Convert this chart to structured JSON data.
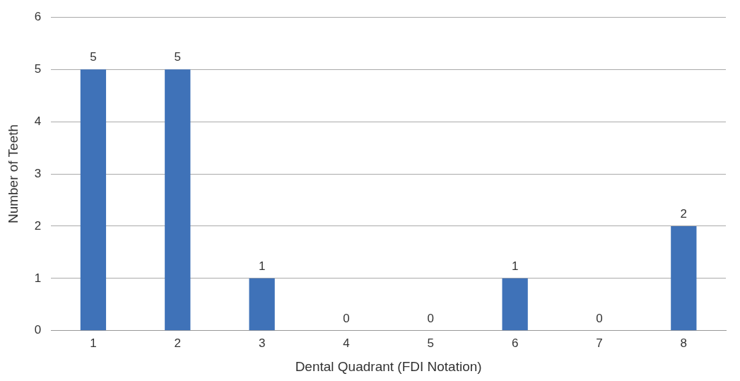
{
  "chart_data": {
    "type": "bar",
    "xlabel": "Dental Quadrant (FDI Notation)",
    "ylabel": "Number of Teeth",
    "categories": [
      "1",
      "2",
      "3",
      "4",
      "5",
      "6",
      "7",
      "8"
    ],
    "values": [
      5,
      5,
      1,
      0,
      0,
      1,
      0,
      2
    ],
    "color": "#3f72b8",
    "ylim": [
      0,
      6
    ],
    "yticks": [
      0,
      1,
      2,
      3,
      4,
      5,
      6
    ],
    "grid": "y",
    "data_labels": true,
    "legend": false
  }
}
